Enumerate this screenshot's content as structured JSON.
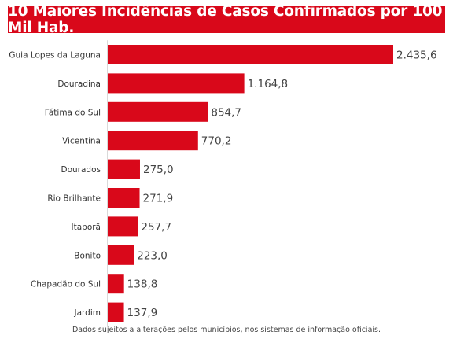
{
  "chart_data": {
    "type": "bar",
    "orientation": "horizontal",
    "title": "10 Maiores Incidências de Casos Confirmados por 100 Mil Hab.",
    "categories": [
      "Guia Lopes da Laguna",
      "Douradina",
      "Fátima do Sul",
      "Vicentina",
      "Dourados",
      "Rio Brilhante",
      "Itaporã",
      "Bonito",
      "Chapadão do Sul",
      "Jardim"
    ],
    "values": [
      2435.6,
      1164.8,
      854.7,
      770.2,
      275.0,
      271.9,
      257.7,
      223.0,
      138.8,
      137.9
    ],
    "value_labels": [
      "2.435,6",
      "1.164,8",
      "854,7",
      "770,2",
      "275,0",
      "271,9",
      "257,7",
      "223,0",
      "138,8",
      "137,9"
    ],
    "xlim": [
      0,
      2435.6
    ],
    "grid": false,
    "bar_color": "#d9081a",
    "footnote": "Dados sujeitos a alterações pelos municípios, nos sistemas de informação oficiais."
  }
}
